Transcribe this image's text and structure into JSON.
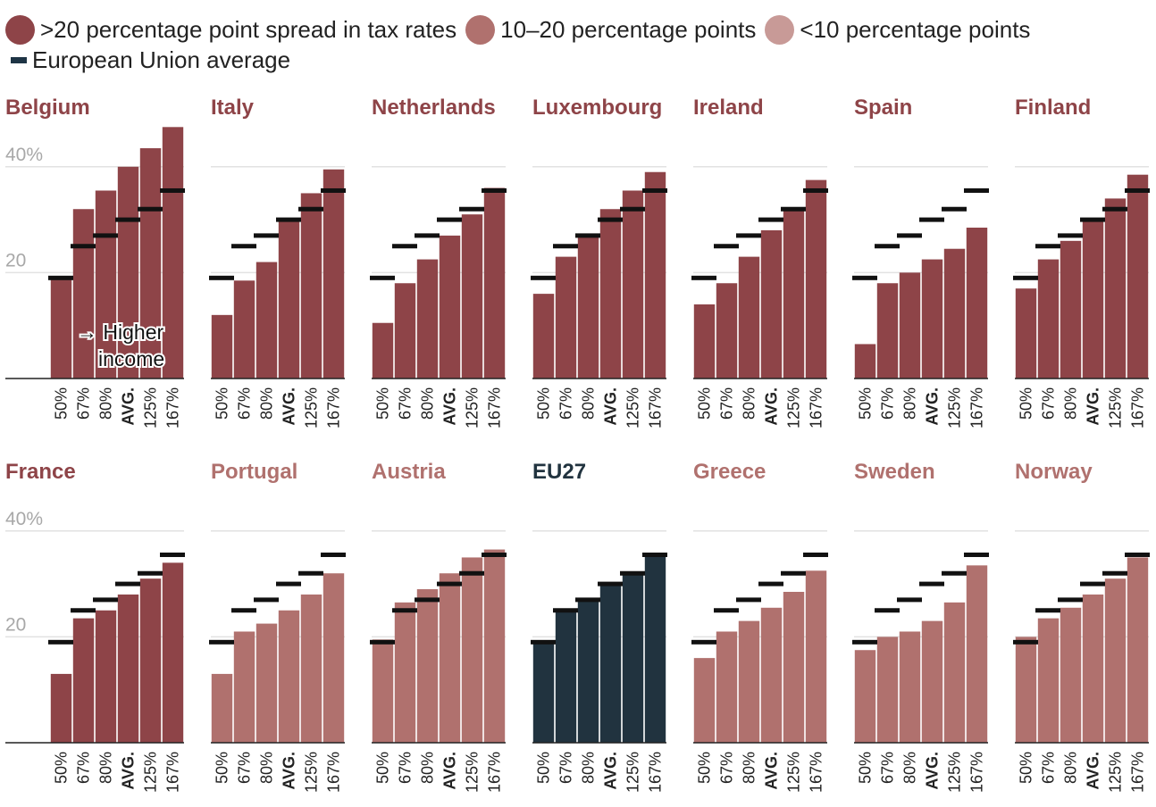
{
  "legend": {
    "items": [
      {
        "label": ">20 percentage point spread in tax rates",
        "color": "#8e4448"
      },
      {
        "label": "10–20 percentage points",
        "color": "#b0716e"
      },
      {
        "label": "<10 percentage points",
        "color": "#c89a97"
      }
    ],
    "eu_marker_label": "European Union average",
    "eu_marker_color": "#1e3445"
  },
  "annotation": {
    "line1": "→ Higher",
    "line2": "income"
  },
  "chart_data": {
    "type": "bar",
    "categories": [
      "50%",
      "67%",
      "80%",
      "AVG.",
      "125%",
      "167%"
    ],
    "y_ticks": [
      {
        "value": 40,
        "label": "40%"
      },
      {
        "value": 20,
        "label": "20"
      }
    ],
    "ylim": [
      0,
      48
    ],
    "eu_average": [
      19,
      25,
      27,
      30,
      32,
      35.5
    ],
    "colors": {
      "high": "#8e4448",
      "mid": "#b0716e",
      "low": "#c89a97",
      "eu": "#21333f"
    },
    "panels": [
      {
        "name": "Belgium",
        "group": "high",
        "values": [
          19,
          32,
          35.5,
          40,
          43.5,
          47.5
        ]
      },
      {
        "name": "Italy",
        "group": "high",
        "values": [
          12,
          18.5,
          22,
          30,
          35,
          39.5
        ]
      },
      {
        "name": "Netherlands",
        "group": "high",
        "values": [
          10.5,
          18,
          22.5,
          27,
          31,
          36
        ]
      },
      {
        "name": "Luxembourg",
        "group": "high",
        "values": [
          16,
          23,
          27,
          32,
          35.5,
          39
        ]
      },
      {
        "name": "Ireland",
        "group": "high",
        "values": [
          14,
          18,
          23,
          28,
          32,
          37.5
        ]
      },
      {
        "name": "Spain",
        "group": "high",
        "values": [
          6.5,
          18,
          20,
          22.5,
          24.5,
          28.5
        ]
      },
      {
        "name": "Finland",
        "group": "high",
        "values": [
          17,
          22.5,
          26,
          30,
          34,
          38.5
        ]
      },
      {
        "name": "France",
        "group": "high",
        "values": [
          13,
          23.5,
          25,
          28,
          31,
          34
        ]
      },
      {
        "name": "Portugal",
        "group": "mid",
        "values": [
          13,
          21,
          22.5,
          25,
          28,
          32
        ]
      },
      {
        "name": "Austria",
        "group": "mid",
        "values": [
          19.5,
          26.5,
          29,
          32,
          35,
          36.5
        ]
      },
      {
        "name": "EU27",
        "group": "eu",
        "values": [
          19,
          25,
          27,
          30,
          32,
          35.5
        ]
      },
      {
        "name": "Greece",
        "group": "mid",
        "values": [
          16,
          21,
          23,
          25.5,
          28.5,
          32.5
        ]
      },
      {
        "name": "Sweden",
        "group": "mid",
        "values": [
          17.5,
          20,
          21,
          23,
          26.5,
          33.5
        ]
      },
      {
        "name": "Norway",
        "group": "mid",
        "values": [
          20,
          23.5,
          25.5,
          28,
          31,
          35
        ]
      }
    ]
  }
}
